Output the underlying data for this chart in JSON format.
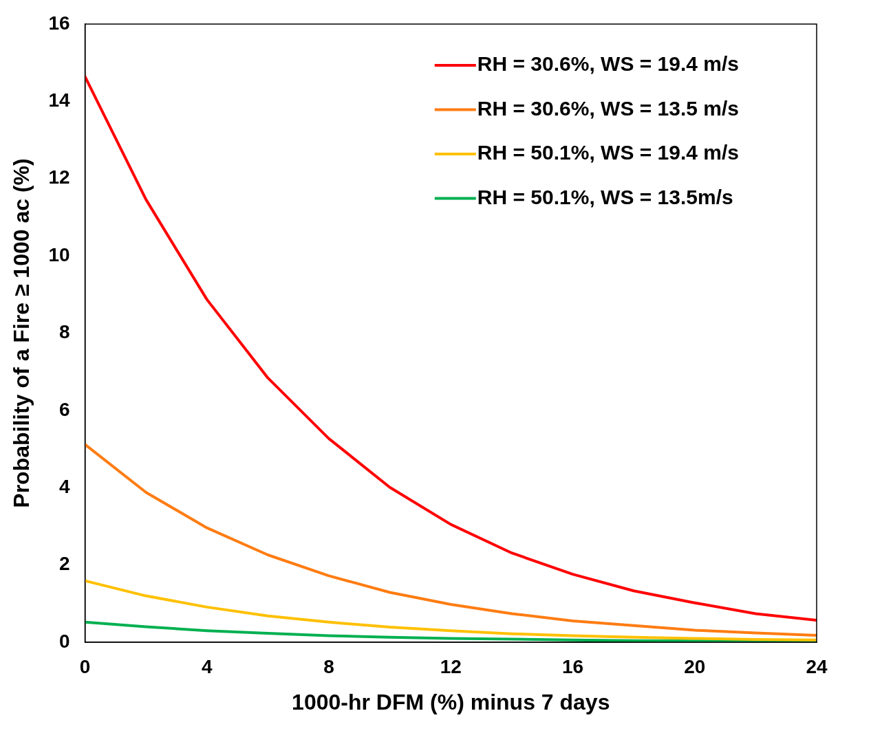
{
  "chart_data": {
    "type": "line",
    "xlabel": "1000-hr DFM (%) minus 7 days",
    "ylabel": "Probability of a Fire ≥ 1000 ac (%)",
    "x": [
      0,
      2,
      4,
      6,
      8,
      10,
      12,
      14,
      16,
      18,
      20,
      22,
      24
    ],
    "series": [
      {
        "name": "RH = 30.6%, WS = 19.4 m/s",
        "color": "#ff0000",
        "values": [
          14.64,
          11.46,
          8.87,
          6.84,
          5.27,
          4.01,
          3.05,
          2.31,
          1.76,
          1.33,
          1.02,
          0.74,
          0.57
        ]
      },
      {
        "name": "RH = 30.6%, WS = 13.5 m/s",
        "color": "#ff7c12",
        "values": [
          5.12,
          3.88,
          2.96,
          2.26,
          1.72,
          1.29,
          0.98,
          0.74,
          0.55,
          0.43,
          0.31,
          0.24,
          0.18
        ]
      },
      {
        "name": "RH = 50.1%, WS = 19.4 m/s",
        "color": "#ffc000",
        "values": [
          1.59,
          1.2,
          0.91,
          0.68,
          0.52,
          0.39,
          0.3,
          0.22,
          0.17,
          0.13,
          0.1,
          0.07,
          0.06
        ]
      },
      {
        "name": "RH = 50.1%, WS = 13.5m/s",
        "color": "#00b050",
        "values": [
          0.52,
          0.4,
          0.3,
          0.23,
          0.17,
          0.13,
          0.1,
          0.08,
          0.06,
          0.04,
          0.03,
          0.03,
          0.02
        ]
      }
    ],
    "xlim": [
      0,
      24
    ],
    "xticks": [
      0,
      4,
      8,
      12,
      16,
      20,
      24
    ],
    "ylim": [
      0,
      16
    ],
    "yticks": [
      0,
      2,
      4,
      6,
      8,
      10,
      12,
      14,
      16
    ],
    "grid": false,
    "legend": "top right",
    "marker": "none",
    "line_style": "solid"
  }
}
